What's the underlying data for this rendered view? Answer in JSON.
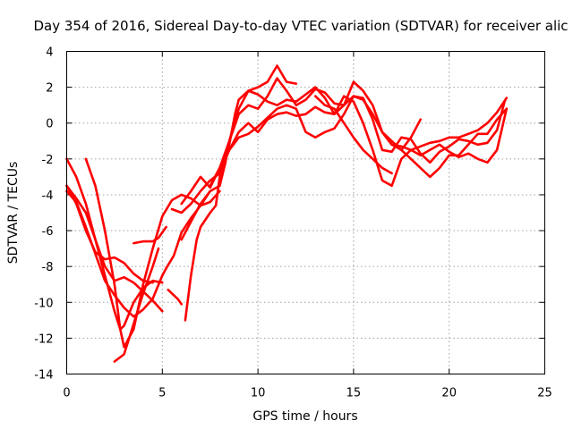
{
  "chart_data": {
    "type": "scatter",
    "title": "Day 354 of 2016, Sidereal Day-to-day VTEC variation (SDTVAR) for receiver alic",
    "xlabel": "GPS time / hours",
    "ylabel": "SDTVAR / TECUs",
    "xlim": [
      0,
      25
    ],
    "ylim": [
      -14,
      4
    ],
    "xticks": [
      0,
      5,
      10,
      15,
      20,
      25
    ],
    "yticks": [
      4,
      2,
      0,
      -2,
      -4,
      -6,
      -8,
      -10,
      -12,
      -14
    ],
    "grid": true,
    "marker": "+",
    "color": "#ff0000",
    "series": [
      {
        "points": [
          [
            0,
            -3.5
          ],
          [
            0.5,
            -4.2
          ],
          [
            1.0,
            -5.0
          ],
          [
            1.5,
            -6.5
          ],
          [
            2.0,
            -8.0
          ],
          [
            2.5,
            -8.8
          ],
          [
            3.0,
            -8.6
          ],
          [
            3.5,
            -8.9
          ],
          [
            4.0,
            -9.4
          ],
          [
            4.5,
            -9.9
          ],
          [
            5.0,
            -10.5
          ]
        ]
      },
      {
        "points": [
          [
            0,
            -2.0
          ],
          [
            0.5,
            -3.0
          ],
          [
            1.0,
            -4.5
          ],
          [
            1.5,
            -6.5
          ],
          [
            2.0,
            -8.5
          ],
          [
            2.5,
            -10.5
          ],
          [
            2.8,
            -11.5
          ],
          [
            3.0,
            -11.3
          ],
          [
            3.5,
            -10.0
          ],
          [
            4.0,
            -9.2
          ],
          [
            4.5,
            -8.8
          ],
          [
            5.0,
            -8.9
          ]
        ]
      },
      {
        "points": [
          [
            0,
            -3.8
          ],
          [
            0.5,
            -4.4
          ],
          [
            1.0,
            -5.8
          ],
          [
            1.5,
            -7.3
          ],
          [
            2.0,
            -8.8
          ],
          [
            2.5,
            -9.6
          ],
          [
            3.0,
            -10.3
          ],
          [
            3.5,
            -10.8
          ],
          [
            4.0,
            -10.4
          ],
          [
            4.5,
            -9.8
          ],
          [
            5.0,
            -8.5
          ],
          [
            5.2,
            -8.1
          ],
          [
            5.6,
            -7.4
          ],
          [
            6.0,
            -6.1
          ],
          [
            6.5,
            -5.3
          ],
          [
            7.0,
            -4.6
          ],
          [
            7.5,
            -3.8
          ]
        ]
      },
      {
        "points": [
          [
            1.0,
            -2.0
          ],
          [
            1.5,
            -3.5
          ],
          [
            2.0,
            -6.0
          ],
          [
            2.5,
            -9.0
          ],
          [
            2.8,
            -11.5
          ],
          [
            3.0,
            -12.5
          ],
          [
            3.5,
            -11.5
          ],
          [
            4.0,
            -9.0
          ],
          [
            4.5,
            -7.0
          ],
          [
            5.0,
            -5.2
          ],
          [
            5.5,
            -4.3
          ],
          [
            6.0,
            -4.0
          ],
          [
            6.5,
            -4.2
          ],
          [
            7.0,
            -4.6
          ],
          [
            7.5,
            -4.4
          ],
          [
            8.0,
            -3.8
          ]
        ]
      },
      {
        "points": [
          [
            0,
            -3.5
          ],
          [
            0.5,
            -4.5
          ],
          [
            1.0,
            -6.0
          ],
          [
            1.5,
            -7.2
          ],
          [
            2.0,
            -7.6
          ],
          [
            2.5,
            -7.5
          ],
          [
            3.0,
            -7.8
          ],
          [
            3.5,
            -8.4
          ],
          [
            4.0,
            -8.8
          ],
          [
            4.5,
            -8.9
          ]
        ]
      },
      {
        "points": [
          [
            2.5,
            -13.3
          ],
          [
            3.0,
            -12.9
          ],
          [
            3.5,
            -11.2
          ],
          [
            4.0,
            -9.5
          ],
          [
            4.5,
            -8.0
          ],
          [
            4.8,
            -7.0
          ]
        ]
      },
      {
        "points": [
          [
            3.5,
            -6.7
          ],
          [
            4.0,
            -6.6
          ],
          [
            4.5,
            -6.6
          ],
          [
            4.8,
            -6.4
          ],
          [
            5.2,
            -5.8
          ]
        ]
      },
      {
        "points": [
          [
            5.3,
            -9.3
          ],
          [
            5.6,
            -9.6
          ],
          [
            5.8,
            -9.8
          ],
          [
            6.0,
            -10.1
          ]
        ]
      },
      {
        "points": [
          [
            6.2,
            -11.0
          ],
          [
            6.5,
            -8.5
          ],
          [
            6.8,
            -6.5
          ],
          [
            7.0,
            -5.8
          ],
          [
            7.5,
            -5.0
          ],
          [
            7.8,
            -4.6
          ],
          [
            8.0,
            -3.0
          ],
          [
            8.5,
            -1.2
          ],
          [
            8.8,
            0.5
          ],
          [
            9.0,
            1.3
          ],
          [
            9.5,
            1.8
          ],
          [
            10.0,
            2.0
          ],
          [
            10.5,
            2.3
          ],
          [
            11.0,
            3.2
          ],
          [
            11.5,
            2.3
          ],
          [
            12.0,
            2.2
          ]
        ]
      },
      {
        "points": [
          [
            6.0,
            -6.5
          ],
          [
            6.5,
            -5.5
          ],
          [
            7.0,
            -4.5
          ],
          [
            7.5,
            -3.8
          ],
          [
            8.0,
            -3.5
          ],
          [
            8.3,
            -2.2
          ],
          [
            8.5,
            -1.0
          ],
          [
            9.0,
            0.5
          ],
          [
            9.5,
            1.0
          ],
          [
            10.0,
            0.8
          ],
          [
            10.5,
            1.5
          ],
          [
            11.0,
            2.5
          ],
          [
            11.5,
            1.8
          ],
          [
            12.0,
            1.0
          ],
          [
            12.5,
            1.3
          ],
          [
            13.0,
            1.9
          ],
          [
            13.5,
            1.7
          ],
          [
            14.0,
            1.1
          ],
          [
            14.5,
            1.0
          ],
          [
            15.0,
            1.5
          ],
          [
            15.5,
            1.4
          ],
          [
            16.0,
            0.2
          ],
          [
            16.5,
            -1.5
          ],
          [
            17.0,
            -1.6
          ],
          [
            17.5,
            -0.8
          ],
          [
            18.0,
            -0.9
          ],
          [
            18.5,
            -1.7
          ],
          [
            19.0,
            -2.2
          ],
          [
            19.5,
            -1.6
          ],
          [
            20.0,
            -1.3
          ],
          [
            20.5,
            -0.9
          ],
          [
            21.0,
            -1.0
          ],
          [
            21.5,
            -1.2
          ],
          [
            22.0,
            -1.1
          ],
          [
            22.5,
            -0.4
          ],
          [
            22.9,
            1.2
          ]
        ]
      },
      {
        "points": [
          [
            5.5,
            -4.8
          ],
          [
            6.0,
            -5.0
          ],
          [
            6.5,
            -4.5
          ],
          [
            7.0,
            -3.8
          ],
          [
            7.5,
            -3.2
          ],
          [
            8.0,
            -2.8
          ],
          [
            8.5,
            -1.5
          ],
          [
            9.0,
            -0.8
          ],
          [
            9.5,
            -0.6
          ],
          [
            10.0,
            -0.2
          ],
          [
            10.5,
            0.3
          ],
          [
            11.0,
            0.8
          ],
          [
            11.5,
            1.0
          ],
          [
            12.0,
            0.8
          ],
          [
            12.5,
            -0.5
          ],
          [
            13.0,
            -0.8
          ],
          [
            13.5,
            -0.5
          ],
          [
            14.0,
            -0.3
          ],
          [
            14.5,
            0.5
          ],
          [
            15.0,
            1.5
          ],
          [
            15.5,
            1.3
          ],
          [
            16.0,
            0.5
          ],
          [
            16.5,
            -0.5
          ],
          [
            17.0,
            -1.2
          ],
          [
            17.5,
            -1.5
          ],
          [
            18.0,
            -2.0
          ],
          [
            18.5,
            -2.5
          ],
          [
            19.0,
            -3.0
          ],
          [
            19.5,
            -2.5
          ],
          [
            20.0,
            -1.8
          ],
          [
            20.5,
            -1.8
          ],
          [
            21.0,
            -1.2
          ],
          [
            21.5,
            -0.6
          ],
          [
            22.0,
            -0.6
          ],
          [
            22.5,
            0.2
          ],
          [
            23.0,
            0.8
          ]
        ]
      },
      {
        "points": [
          [
            6.0,
            -4.5
          ],
          [
            6.5,
            -3.8
          ],
          [
            7.0,
            -3.0
          ],
          [
            7.5,
            -3.6
          ],
          [
            8.0,
            -2.5
          ],
          [
            8.5,
            -1.0
          ],
          [
            9.0,
            0.8
          ],
          [
            9.5,
            1.8
          ],
          [
            10.0,
            1.6
          ],
          [
            10.5,
            1.2
          ],
          [
            11.0,
            1.0
          ],
          [
            11.5,
            1.3
          ],
          [
            12.0,
            1.2
          ],
          [
            12.5,
            1.6
          ],
          [
            13.0,
            2.0
          ],
          [
            13.5,
            1.4
          ],
          [
            14.0,
            0.5
          ],
          [
            14.5,
            1.5
          ],
          [
            15.0,
            1.2
          ],
          [
            15.5,
            0.0
          ],
          [
            16.0,
            -1.5
          ],
          [
            16.5,
            -3.2
          ],
          [
            17.0,
            -3.5
          ],
          [
            17.5,
            -2.0
          ],
          [
            18.0,
            -1.5
          ],
          [
            18.5,
            -1.3
          ],
          [
            19.0,
            -1.1
          ],
          [
            19.5,
            -1.0
          ],
          [
            20.0,
            -0.8
          ],
          [
            20.5,
            -0.8
          ],
          [
            21.0,
            -0.6
          ],
          [
            21.5,
            -0.4
          ],
          [
            22.0,
            0.0
          ],
          [
            22.5,
            0.6
          ],
          [
            23.0,
            1.4
          ]
        ]
      },
      {
        "points": [
          [
            7.5,
            -3.5
          ],
          [
            8.0,
            -2.5
          ],
          [
            8.5,
            -1.5
          ],
          [
            9.0,
            -0.5
          ],
          [
            9.5,
            0.0
          ],
          [
            10.0,
            -0.5
          ],
          [
            10.5,
            0.2
          ],
          [
            11.0,
            0.5
          ],
          [
            11.5,
            0.6
          ],
          [
            12.0,
            0.4
          ],
          [
            12.5,
            0.5
          ],
          [
            13.0,
            0.9
          ],
          [
            13.5,
            0.6
          ],
          [
            14.0,
            0.5
          ],
          [
            14.5,
            1.0
          ],
          [
            15.0,
            2.3
          ],
          [
            15.5,
            1.8
          ],
          [
            16.0,
            1.0
          ],
          [
            16.5,
            -0.5
          ],
          [
            17.0,
            -1.2
          ],
          [
            17.5,
            -1.3
          ],
          [
            18.0,
            -1.5
          ],
          [
            18.5,
            -1.8
          ],
          [
            19.0,
            -1.5
          ],
          [
            19.5,
            -1.2
          ],
          [
            20.0,
            -1.6
          ],
          [
            20.5,
            -1.9
          ],
          [
            21.0,
            -1.7
          ],
          [
            21.5,
            -2.0
          ],
          [
            22.0,
            -2.2
          ],
          [
            22.5,
            -1.5
          ],
          [
            23.0,
            0.8
          ]
        ]
      },
      {
        "points": [
          [
            13.0,
            1.5
          ],
          [
            13.5,
            1.0
          ],
          [
            14.0,
            0.8
          ],
          [
            14.5,
            0.0
          ],
          [
            15.0,
            -0.8
          ],
          [
            15.5,
            -1.5
          ],
          [
            16.0,
            -2.0
          ],
          [
            16.5,
            -2.5
          ],
          [
            17.0,
            -2.8
          ]
        ]
      },
      {
        "points": [
          [
            16.5,
            -0.5
          ],
          [
            17.0,
            -1.0
          ],
          [
            17.5,
            -1.5
          ],
          [
            18.0,
            -0.8
          ],
          [
            18.5,
            0.2
          ]
        ]
      }
    ]
  }
}
